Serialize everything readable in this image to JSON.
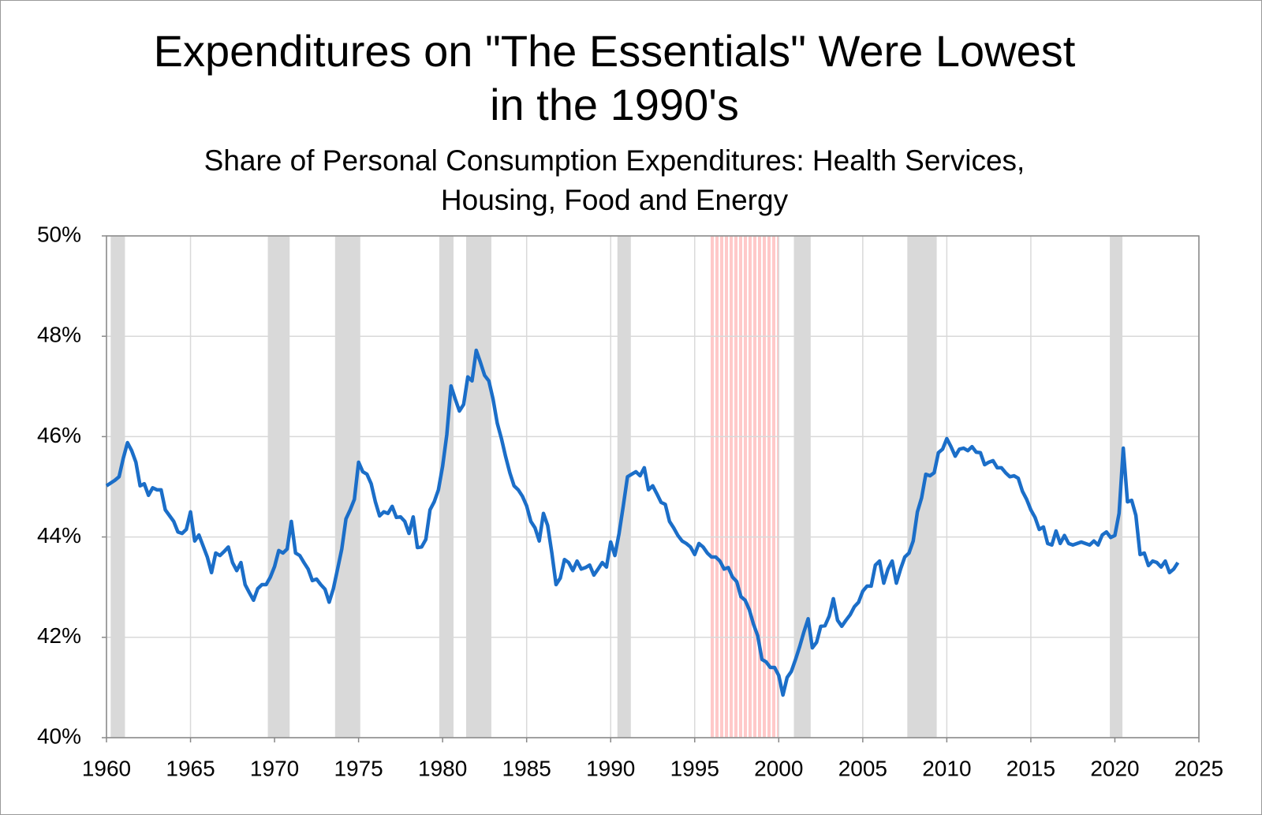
{
  "chart_data": {
    "type": "line",
    "title": "Expenditures on \"The Essentials\" Were Lowest in the 1990's",
    "subtitle": "Share of Personal Consumption Expenditures: Health Services, Housing, Food and Energy",
    "color": "#1b6ec8",
    "x": [
      1960.0,
      1960.5,
      1960.75,
      1961.0,
      1961.25,
      1961.5,
      1961.75,
      1962.0,
      1962.25,
      1962.5,
      1962.75,
      1963.0,
      1963.25,
      1963.5,
      1964.0,
      1964.25,
      1964.5,
      1964.75,
      1965.0,
      1965.25,
      1965.5,
      1966.0,
      1966.25,
      1966.5,
      1966.75,
      1967.0,
      1967.25,
      1967.5,
      1967.75,
      1968.0,
      1968.25,
      1968.5,
      1968.75,
      1969.0,
      1969.25,
      1969.5,
      1969.75,
      1970.0,
      1970.25,
      1970.5,
      1970.75,
      1971.0,
      1971.25,
      1971.5,
      1971.75,
      1972.0,
      1972.25,
      1972.5,
      1972.75,
      1973.0,
      1973.25,
      1973.5,
      1973.75,
      1974.0,
      1974.25,
      1974.5,
      1974.75,
      1975.0,
      1975.25,
      1975.5,
      1975.75,
      1976.0,
      1976.25,
      1976.5,
      1976.75,
      1977.0,
      1977.25,
      1977.5,
      1977.75,
      1978.0,
      1978.25,
      1978.5,
      1978.75,
      1979.0,
      1979.25,
      1979.5,
      1979.75,
      1980.0,
      1980.25,
      1980.5,
      1980.75,
      1981.0,
      1981.25,
      1981.5,
      1981.75,
      1982.0,
      1982.25,
      1982.5,
      1982.75,
      1983.0,
      1983.25,
      1983.5,
      1983.75,
      1984.0,
      1984.25,
      1984.5,
      1984.75,
      1985.0,
      1985.25,
      1985.5,
      1985.75,
      1986.0,
      1986.25,
      1986.5,
      1986.75,
      1987.0,
      1987.25,
      1987.5,
      1987.75,
      1988.0,
      1988.25,
      1988.5,
      1988.75,
      1989.0,
      1989.25,
      1989.5,
      1989.75,
      1990.0,
      1990.25,
      1990.5,
      1990.75,
      1991.0,
      1991.25,
      1991.5,
      1991.75,
      1992.0,
      1992.25,
      1992.5,
      1992.75,
      1993.0,
      1993.25,
      1993.5,
      1993.75,
      1994.0,
      1994.25,
      1994.5,
      1994.75,
      1995.0,
      1995.25,
      1995.5,
      1995.75,
      1996.0,
      1996.25,
      1996.5,
      1996.75,
      1997.0,
      1997.25,
      1997.5,
      1997.75,
      1998.0,
      1998.25,
      1998.5,
      1998.75,
      1999.0,
      1999.25,
      1999.5,
      1999.75,
      2000.0,
      2000.25,
      2000.5,
      2000.75,
      2001.0,
      2001.25,
      2001.5,
      2001.75,
      2002.0,
      2002.25,
      2002.5,
      2002.75,
      2003.0,
      2003.25,
      2003.5,
      2003.75,
      2004.0,
      2004.25,
      2004.5,
      2004.75,
      2005.0,
      2005.25,
      2005.5,
      2005.75,
      2006.0,
      2006.25,
      2006.5,
      2006.75,
      2007.0,
      2007.25,
      2007.5,
      2007.75,
      2008.0,
      2008.25,
      2008.5,
      2008.75,
      2009.0,
      2009.25,
      2009.5,
      2009.75,
      2010.0,
      2010.25,
      2010.5,
      2010.75,
      2011.0,
      2011.25,
      2011.5,
      2011.75,
      2012.0,
      2012.25,
      2012.5,
      2012.75,
      2013.0,
      2013.25,
      2013.5,
      2013.75,
      2014.0,
      2014.25,
      2014.5,
      2014.75,
      2015.0,
      2015.25,
      2015.5,
      2015.75,
      2016.0,
      2016.25,
      2016.5,
      2016.75,
      2017.0,
      2017.25,
      2017.5,
      2017.75,
      2018.0,
      2018.25,
      2018.5,
      2018.75,
      2019.0,
      2019.25,
      2019.5,
      2019.75,
      2020.0,
      2020.25,
      2020.5,
      2020.75,
      2021.0,
      2021.25,
      2021.5,
      2021.75,
      2022.0,
      2022.25,
      2022.5,
      2022.75,
      2023.0,
      2023.25,
      2023.5,
      2023.75
    ],
    "values": [
      45.02,
      45.13,
      45.2,
      45.57,
      45.88,
      45.72,
      45.49,
      45.02,
      45.06,
      44.83,
      44.98,
      44.94,
      44.94,
      44.54,
      44.31,
      44.1,
      44.07,
      44.15,
      44.5,
      43.92,
      44.04,
      43.6,
      43.29,
      43.68,
      43.63,
      43.71,
      43.8,
      43.49,
      43.33,
      43.49,
      43.05,
      42.89,
      42.74,
      42.97,
      43.05,
      43.05,
      43.2,
      43.41,
      43.73,
      43.68,
      43.76,
      44.31,
      43.68,
      43.63,
      43.49,
      43.36,
      43.13,
      43.16,
      43.05,
      42.96,
      42.7,
      42.97,
      43.36,
      43.76,
      44.36,
      44.54,
      44.75,
      45.49,
      45.3,
      45.25,
      45.06,
      44.7,
      44.42,
      44.5,
      44.47,
      44.61,
      44.39,
      44.4,
      44.31,
      44.07,
      44.4,
      43.79,
      43.8,
      43.95,
      44.54,
      44.7,
      44.94,
      45.41,
      46.04,
      47.01,
      46.75,
      46.51,
      46.64,
      47.19,
      47.11,
      47.72,
      47.48,
      47.22,
      47.11,
      46.75,
      46.27,
      45.96,
      45.6,
      45.28,
      45.02,
      44.94,
      44.81,
      44.62,
      44.31,
      44.18,
      43.92,
      44.47,
      44.23,
      43.68,
      43.05,
      43.18,
      43.55,
      43.49,
      43.33,
      43.52,
      43.36,
      43.39,
      43.44,
      43.24,
      43.36,
      43.49,
      43.4,
      43.9,
      43.63,
      44.07,
      44.62,
      45.2,
      45.25,
      45.3,
      45.22,
      45.38,
      44.94,
      45.02,
      44.86,
      44.69,
      44.65,
      44.31,
      44.18,
      44.03,
      43.92,
      43.87,
      43.8,
      43.65,
      43.87,
      43.8,
      43.68,
      43.6,
      43.6,
      43.52,
      43.36,
      43.39,
      43.2,
      43.11,
      42.81,
      42.74,
      42.55,
      42.26,
      42.03,
      41.56,
      41.51,
      41.4,
      41.4,
      41.24,
      40.85,
      41.2,
      41.32,
      41.56,
      41.82,
      42.11,
      42.37,
      41.79,
      41.9,
      42.22,
      42.23,
      42.42,
      42.77,
      42.34,
      42.22,
      42.34,
      42.45,
      42.61,
      42.7,
      42.92,
      43.02,
      43.02,
      43.44,
      43.52,
      43.08,
      43.36,
      43.52,
      43.08,
      43.36,
      43.6,
      43.68,
      43.92,
      44.5,
      44.78,
      45.25,
      45.22,
      45.28,
      45.68,
      45.75,
      45.96,
      45.8,
      45.61,
      45.75,
      45.77,
      45.72,
      45.8,
      45.69,
      45.68,
      45.44,
      45.49,
      45.52,
      45.38,
      45.38,
      45.28,
      45.2,
      45.22,
      45.17,
      44.91,
      44.75,
      44.54,
      44.39,
      44.15,
      44.2,
      43.87,
      43.84,
      44.12,
      43.87,
      44.03,
      43.87,
      43.84,
      43.87,
      43.9,
      43.87,
      43.84,
      43.92,
      43.84,
      44.04,
      44.1,
      43.99,
      44.03,
      44.47,
      45.77,
      44.7,
      44.73,
      44.43,
      43.65,
      43.68,
      43.43,
      43.52,
      43.49,
      43.4,
      43.52,
      43.29,
      43.36,
      43.49
    ],
    "recessions": [
      [
        1960.25,
        1961.1
      ],
      [
        1969.6,
        1970.9
      ],
      [
        1973.6,
        1975.1
      ],
      [
        1979.8,
        1980.65
      ],
      [
        1981.4,
        1982.9
      ],
      [
        1990.4,
        1991.2
      ],
      [
        2000.9,
        2001.9
      ],
      [
        2007.65,
        2009.4
      ],
      [
        2019.7,
        2020.45
      ]
    ],
    "recession_color": "#d9d9d9",
    "highlight": [
      1995.9,
      2000.0
    ],
    "highlight_color": "#ffc9c9",
    "xlim": [
      1960,
      2025
    ],
    "xticks": [
      1960,
      1965,
      1970,
      1975,
      1980,
      1985,
      1990,
      1995,
      2000,
      2005,
      2010,
      2015,
      2020,
      2025
    ],
    "ylim": [
      40,
      50
    ],
    "yticks": [
      {
        "value": 40,
        "label": "40%"
      },
      {
        "value": 42,
        "label": "42%"
      },
      {
        "value": 44,
        "label": "44%"
      },
      {
        "value": 46,
        "label": "46%"
      },
      {
        "value": 48,
        "label": "48%"
      },
      {
        "value": 50,
        "label": "50%"
      }
    ],
    "grid": true
  }
}
